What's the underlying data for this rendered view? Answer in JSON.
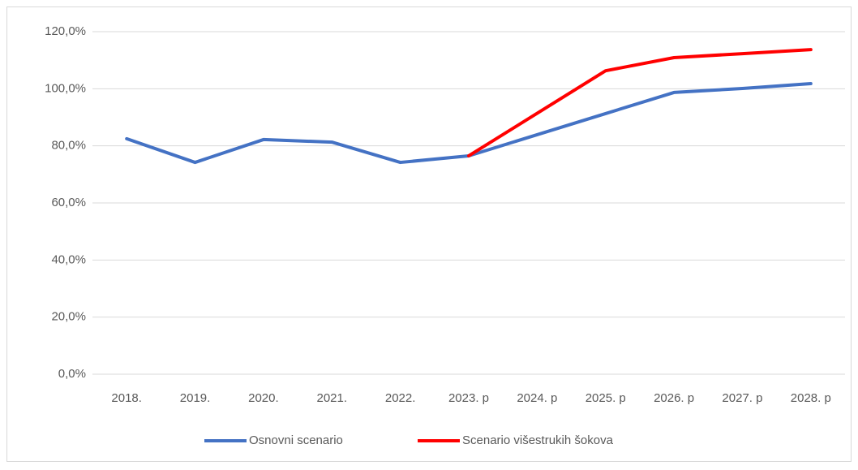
{
  "chart_data": {
    "type": "line",
    "categories": [
      "2018.",
      "2019.",
      "2020.",
      "2021.",
      "2022.",
      "2023. p",
      "2024. p",
      "2025. p",
      "2026. p",
      "2027. p",
      "2028. p"
    ],
    "series": [
      {
        "name": "Osnovni scenario",
        "color": "#4472c4",
        "values": [
          82.5,
          74.2,
          82.2,
          81.3,
          74.2,
          76.5,
          83.9,
          91.3,
          98.7,
          100.1,
          101.8
        ]
      },
      {
        "name": "Scenario višestrukih šokova",
        "color": "#ff0000",
        "values": [
          null,
          null,
          null,
          null,
          null,
          76.5,
          91.4,
          106.3,
          110.9,
          112.3,
          113.7
        ]
      }
    ],
    "ylim": [
      0,
      120
    ],
    "yticks": [
      {
        "value": 0,
        "label": "0,0%"
      },
      {
        "value": 20,
        "label": "20,0%"
      },
      {
        "value": 40,
        "label": "40,0%"
      },
      {
        "value": 60,
        "label": "60,0%"
      },
      {
        "value": 80,
        "label": "80,0%"
      },
      {
        "value": 100,
        "label": "100,0%"
      },
      {
        "value": 120,
        "label": "120,0%"
      }
    ],
    "grid": true,
    "legend": "bottom"
  }
}
